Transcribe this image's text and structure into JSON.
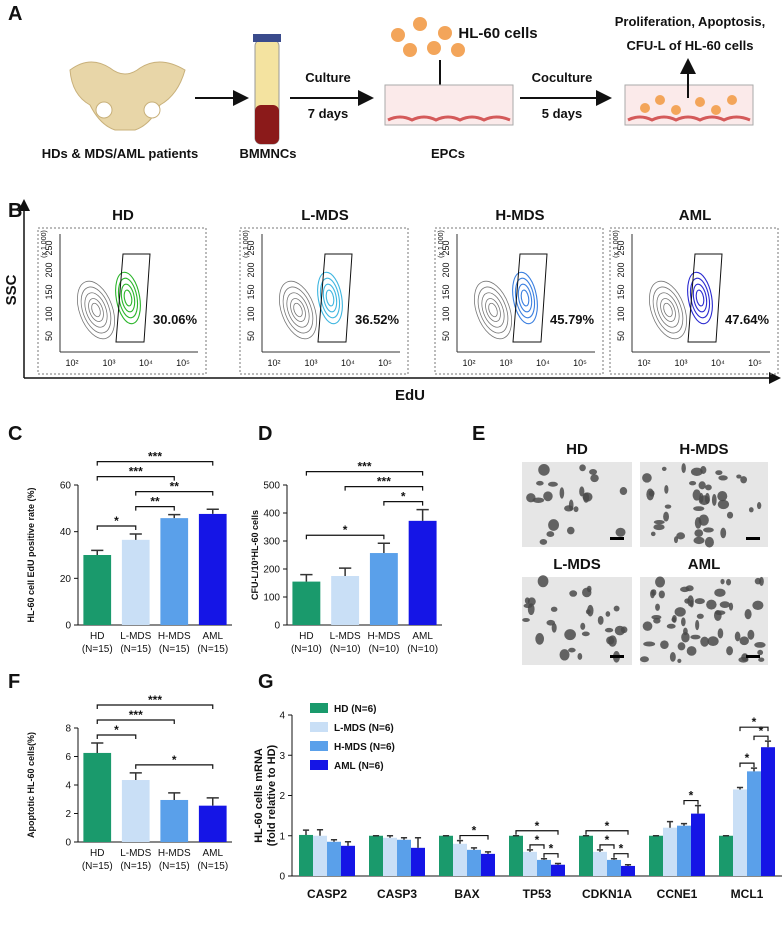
{
  "panel_A": {
    "label": "A",
    "source": "HDs & MDS/AML patients",
    "tube": "BMMNCs",
    "culture": "Culture",
    "culture_time": "7 days",
    "cells": "HL-60 cells",
    "dish": "EPCs",
    "coculture": "Coculture",
    "coculture_time": "5 days",
    "readout_1": "Proliferation, Apoptosis,",
    "readout_2": "CFU-L of HL-60 cells"
  },
  "panel_B": {
    "label": "B",
    "ylabel": "SSC",
    "xlabel": "EdU",
    "x_ticks": [
      "10²",
      "10³",
      "10⁴",
      "10⁵"
    ],
    "y_ticks": [
      "50",
      "100",
      "150",
      "200",
      "250"
    ],
    "y_unit": "(x 1,000)",
    "plots": [
      {
        "title": "HD",
        "percent": "30.06%",
        "color": "#2bb52b"
      },
      {
        "title": "L-MDS",
        "percent": "36.52%",
        "color": "#3fb6e0"
      },
      {
        "title": "H-MDS",
        "percent": "45.79%",
        "color": "#3a7fe0"
      },
      {
        "title": "AML",
        "percent": "47.64%",
        "color": "#2a2ad0"
      }
    ]
  },
  "panel_E": {
    "label": "E",
    "images": [
      {
        "title": "HD"
      },
      {
        "title": "H-MDS"
      },
      {
        "title": "L-MDS"
      },
      {
        "title": "AML"
      }
    ]
  },
  "chart_data": [
    {
      "panel_label": "C",
      "type": "bar",
      "ylabel": "HL-60 cell EdU positive rate (%)",
      "categories": [
        "HD",
        "L-MDS",
        "H-MDS",
        "AML"
      ],
      "category_n": [
        "(N=15)",
        "(N=15)",
        "(N=15)",
        "(N=15)"
      ],
      "values": [
        30,
        36.5,
        45.8,
        47.6
      ],
      "errors": [
        2,
        2.5,
        1.5,
        2
      ],
      "colors": [
        "#1a9a6c",
        "#c9dff6",
        "#5aa0ea",
        "#1515e6"
      ],
      "ylim": [
        0,
        60
      ],
      "yticks": [
        0,
        20,
        40,
        60
      ],
      "annotations": [
        {
          "text": "*",
          "pair": [
            "HD",
            "L-MDS"
          ]
        },
        {
          "text": "**",
          "pair": [
            "L-MDS",
            "H-MDS"
          ]
        },
        {
          "text": "**",
          "pair": [
            "L-MDS",
            "AML"
          ]
        },
        {
          "text": "***",
          "pair": [
            "HD",
            "H-MDS"
          ]
        },
        {
          "text": "***",
          "pair": [
            "HD",
            "AML"
          ]
        }
      ]
    },
    {
      "panel_label": "D",
      "type": "bar",
      "ylabel": "CFU-L/10³HL-60 cells",
      "categories": [
        "HD",
        "L-MDS",
        "H-MDS",
        "AML"
      ],
      "category_n": [
        "(N=10)",
        "(N=10)",
        "(N=10)",
        "(N=10)"
      ],
      "values": [
        155,
        175,
        257,
        372
      ],
      "errors": [
        25,
        28,
        35,
        40
      ],
      "colors": [
        "#1a9a6c",
        "#c9dff6",
        "#5aa0ea",
        "#1515e6"
      ],
      "ylim": [
        0,
        500
      ],
      "yticks": [
        0,
        100,
        200,
        300,
        400,
        500
      ],
      "annotations": [
        {
          "text": "*",
          "pair": [
            "H-MDS",
            "AML"
          ]
        },
        {
          "text": "*",
          "pair": [
            "HD",
            "H-MDS"
          ]
        },
        {
          "text": "***",
          "pair": [
            "L-MDS",
            "AML"
          ]
        },
        {
          "text": "***",
          "pair": [
            "HD",
            "AML"
          ]
        }
      ]
    },
    {
      "panel_label": "F",
      "type": "bar",
      "ylabel": "Apoptotic HL-60 cells(%)",
      "categories": [
        "HD",
        "L-MDS",
        "H-MDS",
        "AML"
      ],
      "category_n": [
        "(N=15)",
        "(N=15)",
        "(N=15)",
        "(N=15)"
      ],
      "values": [
        6.25,
        4.35,
        2.95,
        2.55
      ],
      "errors": [
        0.7,
        0.5,
        0.5,
        0.55
      ],
      "colors": [
        "#1a9a6c",
        "#c9dff6",
        "#5aa0ea",
        "#1515e6"
      ],
      "ylim": [
        0,
        8
      ],
      "yticks": [
        0,
        2,
        4,
        6,
        8
      ],
      "annotations": [
        {
          "text": "*",
          "pair": [
            "L-MDS",
            "AML"
          ]
        },
        {
          "text": "*",
          "pair": [
            "HD",
            "L-MDS"
          ]
        },
        {
          "text": "***",
          "pair": [
            "HD",
            "H-MDS"
          ]
        },
        {
          "text": "***",
          "pair": [
            "HD",
            "AML"
          ]
        }
      ]
    },
    {
      "panel_label": "G",
      "type": "bar",
      "ylabel": "HL-60 cells mRNA",
      "ylabel2": "(fold relative to HD)",
      "categories": [
        "CASP2",
        "CASP3",
        "BAX",
        "TP53",
        "CDKN1A",
        "CCNE1",
        "MCL1"
      ],
      "ylim": [
        0,
        4
      ],
      "yticks": [
        0,
        1,
        2,
        3,
        4
      ],
      "series": [
        {
          "name": "HD (N=6)",
          "color": "#1a9a6c",
          "values": [
            1.02,
            1,
            1,
            1,
            1,
            1,
            1
          ],
          "errors": [
            0.12,
            0,
            0,
            0,
            0,
            0,
            0
          ]
        },
        {
          "name": "L-MDS (N=6)",
          "color": "#c9dff6",
          "values": [
            1,
            0.95,
            0.8,
            0.6,
            0.6,
            1.2,
            2.15
          ],
          "errors": [
            0.15,
            0.05,
            0.08,
            0.05,
            0.05,
            0.15,
            0.05
          ]
        },
        {
          "name": "H-MDS (N=6)",
          "color": "#5aa0ea",
          "values": [
            0.85,
            0.9,
            0.65,
            0.4,
            0.4,
            1.25,
            2.6
          ],
          "errors": [
            0.05,
            0.05,
            0.05,
            0.03,
            0.03,
            0.05,
            0.08
          ]
        },
        {
          "name": "AML (N=6)",
          "color": "#1515e6",
          "values": [
            0.75,
            0.7,
            0.55,
            0.28,
            0.25,
            1.55,
            3.2
          ],
          "errors": [
            0.1,
            0.25,
            0.05,
            0.03,
            0.03,
            0.2,
            0.15
          ]
        }
      ],
      "annotations": [
        {
          "text": "*",
          "category": "BAX",
          "pair": [
            "L-MDS (N=6)",
            "AML (N=6)"
          ]
        },
        {
          "text": "*",
          "category": "TP53",
          "pair": [
            "L-MDS (N=6)",
            "H-MDS (N=6)"
          ]
        },
        {
          "text": "*",
          "category": "TP53",
          "pair": [
            "H-MDS (N=6)",
            "AML (N=6)"
          ]
        },
        {
          "text": "*",
          "category": "TP53",
          "pair": [
            "HD (N=6)",
            "AML (N=6)"
          ]
        },
        {
          "text": "*",
          "category": "CDKN1A",
          "pair": [
            "L-MDS (N=6)",
            "H-MDS (N=6)"
          ]
        },
        {
          "text": "*",
          "category": "CDKN1A",
          "pair": [
            "H-MDS (N=6)",
            "AML (N=6)"
          ]
        },
        {
          "text": "*",
          "category": "CDKN1A",
          "pair": [
            "HD (N=6)",
            "AML (N=6)"
          ]
        },
        {
          "text": "*",
          "category": "CCNE1",
          "pair": [
            "H-MDS (N=6)",
            "AML (N=6)"
          ]
        },
        {
          "text": "*",
          "category": "MCL1",
          "pair": [
            "L-MDS (N=6)",
            "H-MDS (N=6)"
          ]
        },
        {
          "text": "*",
          "category": "MCL1",
          "pair": [
            "H-MDS (N=6)",
            "AML (N=6)"
          ]
        },
        {
          "text": "*",
          "category": "MCL1",
          "pair": [
            "L-MDS (N=6)",
            "AML (N=6)"
          ]
        }
      ]
    }
  ]
}
